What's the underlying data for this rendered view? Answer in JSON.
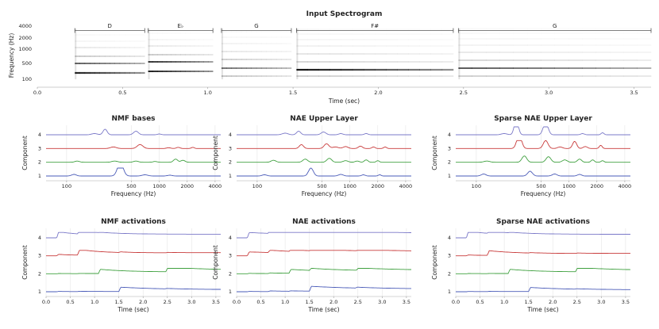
{
  "chart_data": [
    {
      "type": "heatmap",
      "title": "Input Spectrogram",
      "xlabel": "Time (sec)",
      "ylabel": "Frequency (Hz)",
      "xlim": [
        0,
        3.6
      ],
      "xticks": [
        "0.0",
        "0.5",
        "1.0",
        "1.5",
        "2.0",
        "2.5",
        "3.0",
        "3.5"
      ],
      "yticks": [
        "4000",
        "2000",
        "1000",
        "500",
        "100"
      ],
      "notes": [
        {
          "label": "D",
          "start": 0.22,
          "end": 0.63
        },
        {
          "label": "E♭",
          "start": 0.65,
          "end": 1.03
        },
        {
          "label": "G",
          "start": 1.08,
          "end": 1.49
        },
        {
          "label": "F#",
          "start": 1.52,
          "end": 2.44
        },
        {
          "label": "G",
          "start": 2.47,
          "end": 3.6
        }
      ]
    },
    {
      "type": "line",
      "title": "NMF bases",
      "xlabel": "Frequency (Hz)",
      "ylabel": "Component",
      "xticks": [
        "100",
        "500",
        "1000",
        "2000",
        "4000"
      ],
      "yticks": [
        "1",
        "2",
        "3",
        "4"
      ],
      "series": [
        {
          "name": "1",
          "color": "#4a5bb8"
        },
        {
          "name": "2",
          "color": "#3fa03f"
        },
        {
          "name": "3",
          "color": "#c83a3a"
        },
        {
          "name": "4",
          "color": "#7a78c8"
        }
      ]
    },
    {
      "type": "line",
      "title": "NAE Upper Layer",
      "xlabel": "Frequency (Hz)",
      "ylabel": "Component",
      "xticks": [
        "100",
        "500",
        "1000",
        "2000",
        "4000"
      ],
      "yticks": [
        "1",
        "2",
        "3",
        "4"
      ],
      "series": [
        {
          "name": "1",
          "color": "#4a5bb8"
        },
        {
          "name": "2",
          "color": "#3fa03f"
        },
        {
          "name": "3",
          "color": "#c83a3a"
        },
        {
          "name": "4",
          "color": "#7a78c8"
        }
      ]
    },
    {
      "type": "line",
      "title": "Sparse NAE Upper Layer",
      "xlabel": "Frequency (Hz)",
      "ylabel": "Component",
      "xticks": [
        "100",
        "500",
        "1000",
        "2000",
        "4000"
      ],
      "yticks": [
        "1",
        "2",
        "3",
        "4"
      ],
      "series": [
        {
          "name": "1",
          "color": "#4a5bb8"
        },
        {
          "name": "2",
          "color": "#3fa03f"
        },
        {
          "name": "3",
          "color": "#c83a3a"
        },
        {
          "name": "4",
          "color": "#7a78c8"
        }
      ]
    },
    {
      "type": "line",
      "title": "NMF activations",
      "xlabel": "Time (sec)",
      "ylabel": "Component",
      "xlim": [
        0,
        3.6
      ],
      "xticks": [
        "0.0",
        "0.5",
        "1.0",
        "1.5",
        "2.0",
        "2.5",
        "3.0",
        "3.5"
      ],
      "yticks": [
        "1",
        "2",
        "3",
        "4"
      ],
      "series": [
        {
          "name": "1",
          "color": "#4a5bb8"
        },
        {
          "name": "2",
          "color": "#3fa03f"
        },
        {
          "name": "3",
          "color": "#c83a3a"
        },
        {
          "name": "4",
          "color": "#7a78c8"
        }
      ]
    },
    {
      "type": "line",
      "title": "NAE activations",
      "xlabel": "Time (sec)",
      "ylabel": "Component",
      "xlim": [
        0,
        3.6
      ],
      "xticks": [
        "0.0",
        "0.5",
        "1.0",
        "1.5",
        "2.0",
        "2.5",
        "3.0",
        "3.5"
      ],
      "yticks": [
        "1",
        "2",
        "3",
        "4"
      ],
      "series": [
        {
          "name": "1",
          "color": "#4a5bb8"
        },
        {
          "name": "2",
          "color": "#3fa03f"
        },
        {
          "name": "3",
          "color": "#c83a3a"
        },
        {
          "name": "4",
          "color": "#7a78c8"
        }
      ]
    },
    {
      "type": "line",
      "title": "Sparse NAE activations",
      "xlabel": "Time (sec)",
      "ylabel": "Component",
      "xlim": [
        0,
        3.6
      ],
      "xticks": [
        "0.0",
        "0.5",
        "1.0",
        "1.5",
        "2.0",
        "2.5",
        "3.0",
        "3.5"
      ],
      "yticks": [
        "1",
        "2",
        "3",
        "4"
      ],
      "series": [
        {
          "name": "1",
          "color": "#4a5bb8"
        },
        {
          "name": "2",
          "color": "#3fa03f"
        },
        {
          "name": "3",
          "color": "#c83a3a"
        },
        {
          "name": "4",
          "color": "#7a78c8"
        }
      ]
    }
  ]
}
